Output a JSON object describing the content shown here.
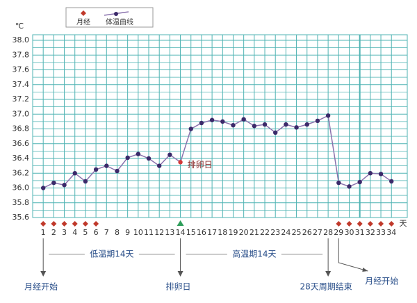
{
  "chart_data": {
    "type": "line",
    "unit_y": "℃",
    "unit_x": "天",
    "x": [
      1,
      2,
      3,
      4,
      5,
      6,
      7,
      8,
      9,
      10,
      11,
      12,
      13,
      14,
      15,
      16,
      17,
      18,
      19,
      20,
      21,
      22,
      23,
      24,
      25,
      26,
      27,
      28,
      29,
      30,
      31,
      32,
      33,
      34
    ],
    "xlim": [
      0,
      35.5
    ],
    "xticks": [
      1,
      2,
      3,
      4,
      5,
      6,
      7,
      8,
      9,
      10,
      11,
      12,
      13,
      14,
      15,
      16,
      17,
      18,
      19,
      20,
      21,
      22,
      23,
      24,
      25,
      26,
      27,
      28,
      29,
      30,
      31,
      32,
      33,
      34
    ],
    "ylim": [
      35.6,
      38.0
    ],
    "yticks": [
      35.6,
      35.8,
      {
        "value": 36.0,
        "label": "36.0"
      },
      36.2,
      36.4,
      36.6,
      36.8,
      {
        "value": 37.0,
        "label": "37.0"
      },
      37.2,
      37.4,
      37.6,
      37.8,
      {
        "value": 38.0,
        "label": "38.0"
      }
    ],
    "grid": true,
    "grid_color": "#4fb3b3",
    "highlight_x": 31,
    "series": [
      {
        "name": "体温曲线",
        "color": "#8a72ad",
        "point_color": "#3b2a6a",
        "values": [
          36.0,
          36.07,
          36.04,
          36.2,
          36.09,
          36.25,
          36.3,
          36.23,
          36.41,
          36.46,
          36.4,
          36.3,
          36.45,
          36.35,
          36.8,
          36.88,
          36.92,
          36.9,
          36.85,
          36.93,
          36.84,
          36.86,
          36.75,
          36.86,
          36.82,
          36.86,
          36.91,
          36.98,
          36.07,
          36.02,
          36.08,
          36.2,
          36.19,
          36.09
        ]
      }
    ],
    "menses": {
      "name": "月经",
      "color": "#c0392b",
      "x": [
        1,
        2,
        3,
        4,
        5,
        6,
        29,
        30,
        31,
        32,
        33,
        34
      ]
    },
    "ovulation": {
      "x": 14,
      "label": "排卵日",
      "color": "#2e9e5a",
      "point_color": "#d23a3a"
    },
    "periods": [
      {
        "label": "低温期14天",
        "from": 1,
        "to": 14
      },
      {
        "label": "高温期14天",
        "from": 14,
        "to": 28
      }
    ],
    "arrows": [
      {
        "x": 1,
        "label": "月经开始"
      },
      {
        "x": 14,
        "label": "排卵日"
      },
      {
        "x": 28,
        "label": "28天周期结束"
      },
      {
        "x": 29,
        "label": "月经开始",
        "bend": true
      }
    ]
  }
}
